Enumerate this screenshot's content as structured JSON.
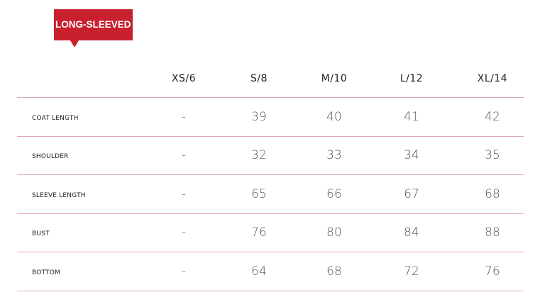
{
  "badge": {
    "label": "LONG-SLEEVED",
    "color": "#c8202f"
  },
  "table": {
    "columns": [
      "XS/6",
      "S/8",
      "M/10",
      "L/12",
      "XL/14"
    ],
    "rows": [
      {
        "label": "COAT LENGTH",
        "values": [
          "-",
          "39",
          "40",
          "41",
          "42"
        ]
      },
      {
        "label": "SHOULDER",
        "values": [
          "-",
          "32",
          "33",
          "34",
          "35"
        ]
      },
      {
        "label": "SLEEVE LENGTH",
        "values": [
          "-",
          "65",
          "66",
          "67",
          "68"
        ]
      },
      {
        "label": "BUST",
        "values": [
          "-",
          "76",
          "80",
          "84",
          "88"
        ]
      },
      {
        "label": "BOTTOM",
        "values": [
          "-",
          "64",
          "68",
          "72",
          "76"
        ]
      }
    ]
  }
}
